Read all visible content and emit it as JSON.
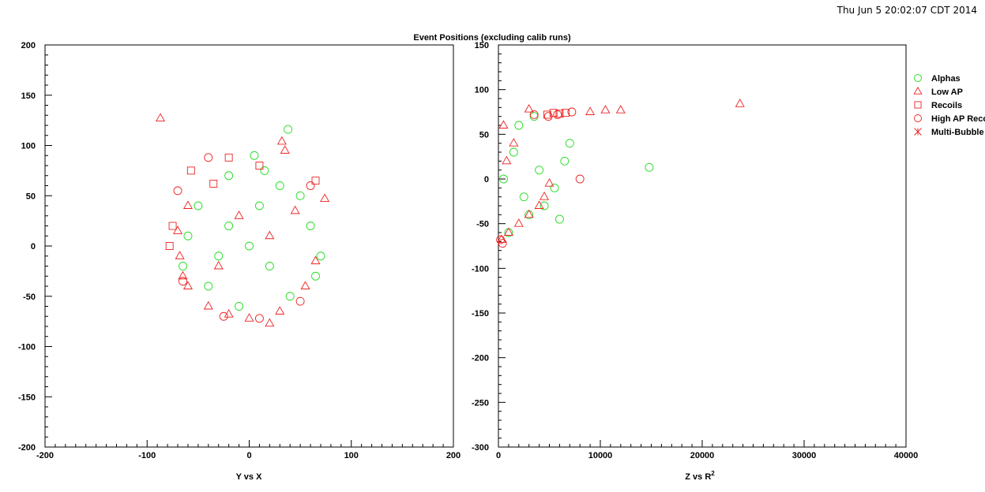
{
  "timestamp": "Thu Jun  5 20:02:07 CDT 2014",
  "title": "Event Positions (excluding calib runs)",
  "colors": {
    "alphas": "#22dd22",
    "red": "#ee2222"
  },
  "legend": [
    {
      "label": "Alphas",
      "marker": "circle",
      "color": "#22dd22"
    },
    {
      "label": "Low AP",
      "marker": "triangle",
      "color": "#ee2222"
    },
    {
      "label": "Recoils",
      "marker": "square",
      "color": "#ee2222"
    },
    {
      "label": "High AP Recoils",
      "marker": "circle",
      "color": "#ee2222"
    },
    {
      "label": "Multi-Bubble",
      "marker": "star",
      "color": "#ee2222"
    }
  ],
  "chart_data": [
    {
      "type": "scatter",
      "xlabel": "Y vs X",
      "xlim": [
        -200,
        200
      ],
      "ylim": [
        -200,
        200
      ],
      "xticks": [
        -200,
        -100,
        0,
        100,
        200
      ],
      "yticks": [
        -200,
        -150,
        -100,
        -50,
        0,
        50,
        100,
        150,
        200
      ],
      "x_tick_labels": [
        "-200",
        "-100",
        "0",
        "100",
        "200"
      ],
      "y_tick_labels": [
        "-200",
        "-150",
        "-100",
        "-50",
        "0",
        "50",
        "100",
        "150",
        "200"
      ],
      "distribution": "disc of points inside radius ~75 centred near (0,0); most points Alphas, denser ring of Low AP along lower-left edge",
      "series": [
        {
          "name": "Alphas",
          "marker": "circle",
          "color": "#22dd22",
          "points": [
            [
              38,
              116
            ],
            [
              5,
              90
            ],
            [
              -20,
              70
            ],
            [
              30,
              60
            ],
            [
              -50,
              40
            ],
            [
              60,
              20
            ],
            [
              70,
              -10
            ],
            [
              40,
              -50
            ],
            [
              -40,
              -40
            ],
            [
              -60,
              10
            ],
            [
              0,
              0
            ],
            [
              20,
              -20
            ],
            [
              -20,
              20
            ],
            [
              10,
              40
            ],
            [
              -30,
              -10
            ],
            [
              50,
              50
            ],
            [
              -10,
              -60
            ],
            [
              65,
              -30
            ],
            [
              -65,
              -20
            ],
            [
              15,
              75
            ]
          ]
        },
        {
          "name": "Low AP",
          "marker": "triangle",
          "color": "#ee2222",
          "points": [
            [
              -87,
              127
            ],
            [
              32,
              104
            ],
            [
              35,
              95
            ],
            [
              74,
              47
            ],
            [
              20,
              -77
            ],
            [
              -60,
              -40
            ],
            [
              -65,
              -30
            ],
            [
              -68,
              -10
            ],
            [
              -70,
              15
            ],
            [
              -60,
              40
            ],
            [
              -40,
              -60
            ],
            [
              -20,
              -68
            ],
            [
              0,
              -72
            ],
            [
              30,
              -65
            ],
            [
              55,
              -40
            ],
            [
              65,
              -15
            ],
            [
              -10,
              30
            ],
            [
              20,
              10
            ],
            [
              -30,
              -20
            ],
            [
              45,
              35
            ]
          ]
        },
        {
          "name": "Recoils",
          "marker": "square",
          "color": "#ee2222",
          "points": [
            [
              -57,
              75
            ],
            [
              -20,
              88
            ],
            [
              -78,
              0
            ],
            [
              -75,
              20
            ],
            [
              65,
              65
            ],
            [
              -35,
              62
            ],
            [
              10,
              80
            ]
          ]
        },
        {
          "name": "High AP Recoils",
          "marker": "circle",
          "color": "#ee2222",
          "points": [
            [
              -40,
              88
            ],
            [
              -70,
              55
            ],
            [
              -65,
              -35
            ],
            [
              10,
              -72
            ],
            [
              50,
              -55
            ],
            [
              60,
              60
            ],
            [
              -25,
              -70
            ]
          ]
        },
        {
          "name": "Multi-Bubble",
          "marker": "star",
          "color": "#ee2222",
          "points": []
        }
      ]
    },
    {
      "type": "scatter",
      "xlabel": "Z vs R",
      "xlabel_sup": "2",
      "xlim": [
        0,
        40000
      ],
      "ylim": [
        -300,
        150
      ],
      "xticks": [
        0,
        10000,
        20000,
        30000,
        40000
      ],
      "yticks": [
        -300,
        -250,
        -200,
        -150,
        -100,
        -50,
        0,
        50,
        100,
        150
      ],
      "x_tick_labels": [
        "0",
        "10000",
        "20000",
        "30000",
        "40000"
      ],
      "y_tick_labels": [
        "-300",
        "-250",
        "-200",
        "-150",
        "-100",
        "-50",
        "0",
        "50",
        "100",
        "150"
      ],
      "distribution": "points fill R^2 < ~6000 with -75 < Z < 75; dense red band at Z~73 for R^2 4500-9000 and red curve along lower boundary",
      "series": [
        {
          "name": "Alphas",
          "marker": "circle",
          "color": "#22dd22",
          "points": [
            [
              14800,
              13
            ],
            [
              7000,
              40
            ],
            [
              6500,
              20
            ],
            [
              5500,
              -10
            ],
            [
              4500,
              -30
            ],
            [
              3000,
              -40
            ],
            [
              1000,
              -60
            ],
            [
              2000,
              60
            ],
            [
              3500,
              70
            ],
            [
              6000,
              -45
            ],
            [
              500,
              0
            ],
            [
              1500,
              30
            ],
            [
              4000,
              10
            ],
            [
              2500,
              -20
            ]
          ]
        },
        {
          "name": "Low AP",
          "marker": "triangle",
          "color": "#ee2222",
          "points": [
            [
              23700,
              84
            ],
            [
              12000,
              77
            ],
            [
              10500,
              77
            ],
            [
              9000,
              75
            ],
            [
              3000,
              78
            ],
            [
              5000,
              -5
            ],
            [
              4500,
              -20
            ],
            [
              4000,
              -30
            ],
            [
              3000,
              -40
            ],
            [
              2000,
              -50
            ],
            [
              1000,
              -60
            ],
            [
              300,
              -68
            ],
            [
              500,
              60
            ],
            [
              1500,
              40
            ],
            [
              800,
              20
            ]
          ]
        },
        {
          "name": "Recoils",
          "marker": "square",
          "color": "#ee2222",
          "points": [
            [
              4800,
              72
            ],
            [
              5400,
              74
            ],
            [
              6000,
              73
            ],
            [
              6600,
              74
            ]
          ]
        },
        {
          "name": "High AP Recoils",
          "marker": "circle",
          "color": "#ee2222",
          "points": [
            [
              8000,
              0
            ],
            [
              4900,
              70
            ],
            [
              5800,
              72
            ],
            [
              7200,
              75
            ],
            [
              3500,
              72
            ],
            [
              400,
              -72
            ],
            [
              200,
              -68
            ]
          ]
        },
        {
          "name": "Multi-Bubble",
          "marker": "star",
          "color": "#ee2222",
          "points": []
        }
      ]
    }
  ]
}
